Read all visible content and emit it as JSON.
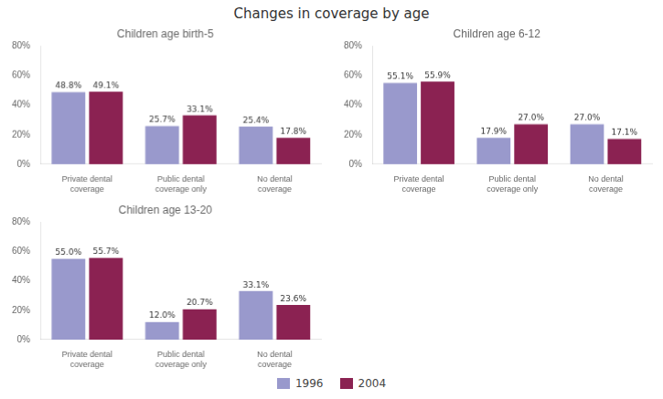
{
  "title": "Changes in coverage by age",
  "legend": "bottom",
  "chart_data": [
    {
      "type": "bar",
      "title": "Children age birth-5",
      "categories": [
        "Private dental coverage",
        "Public dental coverage only",
        "No dental coverage"
      ],
      "series": [
        {
          "name": "1996",
          "color": "#9999CC",
          "values": [
            48.8,
            25.7,
            25.4
          ],
          "value_labels": [
            "48.8%",
            "25.7%",
            "25.4%"
          ]
        },
        {
          "name": "2004",
          "color": "#8B2252",
          "values": [
            49.1,
            33.1,
            17.8
          ],
          "value_labels": [
            "49.1%",
            "33.1%",
            "17.8%"
          ]
        }
      ],
      "ylim": [
        0,
        80
      ],
      "yticks": [
        {
          "value": 0,
          "label": "0%"
        },
        {
          "value": 20,
          "label": "20%"
        },
        {
          "value": 40,
          "label": "40%"
        },
        {
          "value": 60,
          "label": "60%"
        },
        {
          "value": 80,
          "label": "80%"
        }
      ],
      "grid": false,
      "data_labels": true
    },
    {
      "type": "bar",
      "title": "Children age 6-12",
      "categories": [
        "Private dental coverage",
        "Public dental coverage only",
        "No dental coverage"
      ],
      "series": [
        {
          "name": "1996",
          "color": "#9999CC",
          "values": [
            55.1,
            17.9,
            27.0
          ],
          "value_labels": [
            "55.1%",
            "17.9%",
            "27.0%"
          ]
        },
        {
          "name": "2004",
          "color": "#8B2252",
          "values": [
            55.9,
            27.0,
            17.1
          ],
          "value_labels": [
            "55.9%",
            "27.0%",
            "17.1%"
          ]
        }
      ],
      "ylim": [
        0,
        80
      ],
      "yticks": [
        {
          "value": 0,
          "label": "0%"
        },
        {
          "value": 20,
          "label": "20%"
        },
        {
          "value": 40,
          "label": "40%"
        },
        {
          "value": 60,
          "label": "60%"
        },
        {
          "value": 80,
          "label": "80%"
        }
      ],
      "grid": false,
      "data_labels": true
    },
    {
      "type": "bar",
      "title": "Children age 13-20",
      "categories": [
        "Private dental coverage",
        "Public dental coverage only",
        "No dental coverage"
      ],
      "series": [
        {
          "name": "1996",
          "color": "#9999CC",
          "values": [
            55.0,
            12.0,
            33.1
          ],
          "value_labels": [
            "55.0%",
            "12.0%",
            "33.1%"
          ]
        },
        {
          "name": "2004",
          "color": "#8B2252",
          "values": [
            55.7,
            20.7,
            23.6
          ],
          "value_labels": [
            "55.7%",
            "20.7%",
            "23.6%"
          ]
        }
      ],
      "ylim": [
        0,
        80
      ],
      "yticks": [
        {
          "value": 0,
          "label": "0%"
        },
        {
          "value": 20,
          "label": "20%"
        },
        {
          "value": 40,
          "label": "40%"
        },
        {
          "value": 60,
          "label": "60%"
        },
        {
          "value": 80,
          "label": "80%"
        }
      ],
      "grid": false,
      "data_labels": true
    }
  ]
}
